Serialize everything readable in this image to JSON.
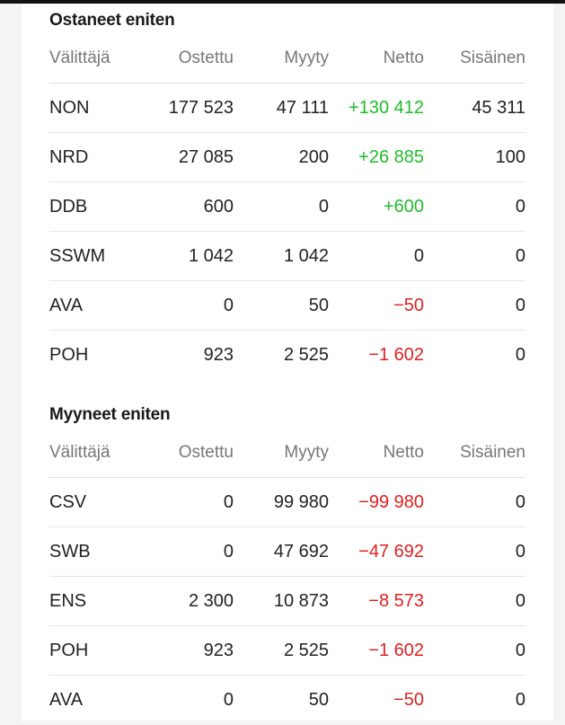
{
  "colors": {
    "positive": "#1fbd2a",
    "negative": "#e02020"
  },
  "columns": [
    "Välittäjä",
    "Ostettu",
    "Myyty",
    "Netto",
    "Sisäinen"
  ],
  "bought": {
    "title": "Ostaneet eniten",
    "rows": [
      {
        "broker": "NON",
        "bought": "177 523",
        "sold": "47 111",
        "net": "+130 412",
        "net_sign": "pos",
        "internal": "45 311"
      },
      {
        "broker": "NRD",
        "bought": "27 085",
        "sold": "200",
        "net": "+26 885",
        "net_sign": "pos",
        "internal": "100"
      },
      {
        "broker": "DDB",
        "bought": "600",
        "sold": "0",
        "net": "+600",
        "net_sign": "pos",
        "internal": "0"
      },
      {
        "broker": "SSWM",
        "bought": "1 042",
        "sold": "1 042",
        "net": "0",
        "net_sign": "zero",
        "internal": "0"
      },
      {
        "broker": "AVA",
        "bought": "0",
        "sold": "50",
        "net": "−50",
        "net_sign": "neg",
        "internal": "0"
      },
      {
        "broker": "POH",
        "bought": "923",
        "sold": "2 525",
        "net": "−1 602",
        "net_sign": "neg",
        "internal": "0"
      }
    ]
  },
  "sold": {
    "title": "Myyneet eniten",
    "rows": [
      {
        "broker": "CSV",
        "bought": "0",
        "sold": "99 980",
        "net": "−99 980",
        "net_sign": "neg",
        "internal": "0"
      },
      {
        "broker": "SWB",
        "bought": "0",
        "sold": "47 692",
        "net": "−47 692",
        "net_sign": "neg",
        "internal": "0"
      },
      {
        "broker": "ENS",
        "bought": "2 300",
        "sold": "10 873",
        "net": "−8 573",
        "net_sign": "neg",
        "internal": "0"
      },
      {
        "broker": "POH",
        "bought": "923",
        "sold": "2 525",
        "net": "−1 602",
        "net_sign": "neg",
        "internal": "0"
      },
      {
        "broker": "AVA",
        "bought": "0",
        "sold": "50",
        "net": "−50",
        "net_sign": "neg",
        "internal": "0"
      }
    ]
  }
}
